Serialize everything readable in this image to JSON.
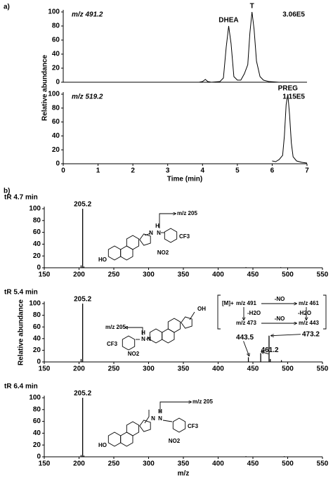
{
  "panel_labels": [
    "a)",
    "b)"
  ],
  "chart_data": [
    {
      "type": "line",
      "title": "m/z 491.2",
      "max_intensity": {
        "value": 306000,
        "label": "3.06E5"
      },
      "x": [
        0,
        1,
        2,
        3,
        3.9,
        4.0,
        4.08,
        4.15,
        4.25,
        4.5,
        4.6,
        4.68,
        4.75,
        4.82,
        4.9,
        5.0,
        5.1,
        5.2,
        5.3,
        5.36,
        5.42,
        5.48,
        5.55,
        5.65,
        5.75,
        5.9,
        6.2,
        7.0
      ],
      "series": [
        {
          "color": "#000000",
          "values": [
            0,
            0,
            0,
            0,
            0,
            1,
            4,
            1,
            0,
            1,
            6,
            50,
            80,
            55,
            8,
            3,
            3,
            12,
            25,
            70,
            100,
            75,
            30,
            8,
            3,
            1,
            0,
            0
          ]
        }
      ],
      "xlim": [
        0,
        7
      ],
      "ylim": [
        0,
        100
      ],
      "yticks": [
        0,
        20,
        40,
        60,
        80,
        100
      ],
      "annotations": [
        "DHEA",
        "T"
      ]
    },
    {
      "type": "line",
      "title": "m/z 519.2",
      "max_intensity": {
        "value": 115000,
        "label": "1.15E5"
      },
      "x": [
        6.0,
        6.1,
        6.2,
        6.3,
        6.35,
        6.4,
        6.45,
        6.5,
        6.55,
        6.6,
        6.7,
        6.85,
        7.0
      ],
      "series": [
        {
          "color": "#000000",
          "values": [
            4,
            3,
            6,
            12,
            40,
            85,
            100,
            70,
            30,
            10,
            4,
            2,
            1
          ]
        }
      ],
      "xlim": [
        0,
        7
      ],
      "ylim": [
        0,
        100
      ],
      "xticks": [
        0,
        1,
        2,
        3,
        4,
        5,
        6,
        7
      ],
      "yticks": [
        0,
        20,
        40,
        60,
        80,
        100
      ],
      "xlabel": "Time (min)",
      "ylabel": "Relative abundance",
      "annotations": [
        "PREG"
      ]
    },
    {
      "type": "bar",
      "title": "tR 4.7 min",
      "x": [
        203,
        205.2,
        207,
        440,
        490
      ],
      "values": [
        4,
        100,
        2,
        1,
        1
      ],
      "peak_labels": [
        null,
        "205.2",
        null,
        null,
        null
      ],
      "color": "#000000",
      "xlim": [
        150,
        550
      ],
      "ylim": [
        0,
        100
      ],
      "xticks": [
        150,
        200,
        250,
        300,
        350,
        400,
        450,
        500,
        550
      ],
      "yticks": [
        0,
        20,
        40,
        60,
        80,
        100
      ],
      "structure": [
        "m/z 205",
        "H",
        "N",
        "N",
        "CF3",
        "NO2",
        "HO"
      ]
    },
    {
      "type": "bar",
      "title": "tR 5.4 min",
      "x": [
        203,
        205.2,
        443.5,
        461.2,
        473.2,
        475,
        491
      ],
      "values": [
        5,
        100,
        8,
        15,
        45,
        5,
        3
      ],
      "peak_labels": [
        null,
        "205.2",
        "443.5",
        "461.2",
        "473.2",
        null,
        null
      ],
      "color": "#000000",
      "xlim": [
        150,
        550
      ],
      "ylim": [
        0,
        100
      ],
      "xticks": [
        150,
        200,
        250,
        300,
        350,
        400,
        450,
        500,
        550
      ],
      "yticks": [
        0,
        20,
        40,
        60,
        80,
        100
      ],
      "ylabel": "Relative abundance",
      "structure": [
        "m/z 205",
        "N",
        "N",
        "H",
        "CF3",
        "NO2",
        "OH"
      ],
      "scheme": [
        "[M]+",
        "m/z 491",
        "-NO",
        "m/z 461",
        "-H2O",
        "-H2O",
        "m/z 473",
        "-NO",
        "m/z 443"
      ]
    },
    {
      "type": "bar",
      "title": "tR 6.4 min",
      "x": [
        203,
        205.2,
        207,
        440,
        495
      ],
      "values": [
        3,
        100,
        2,
        1,
        1
      ],
      "peak_labels": [
        null,
        "205.2",
        null,
        null,
        null
      ],
      "color": "#000000",
      "xlim": [
        150,
        550
      ],
      "ylim": [
        0,
        100
      ],
      "xticks": [
        150,
        200,
        250,
        300,
        350,
        400,
        450,
        500,
        550
      ],
      "yticks": [
        0,
        20,
        40,
        60,
        80,
        100
      ],
      "xlabel": "m/z",
      "structure": [
        "m/z 205",
        "H",
        "N",
        "N",
        "CF3",
        "NO2",
        "HO"
      ]
    }
  ]
}
